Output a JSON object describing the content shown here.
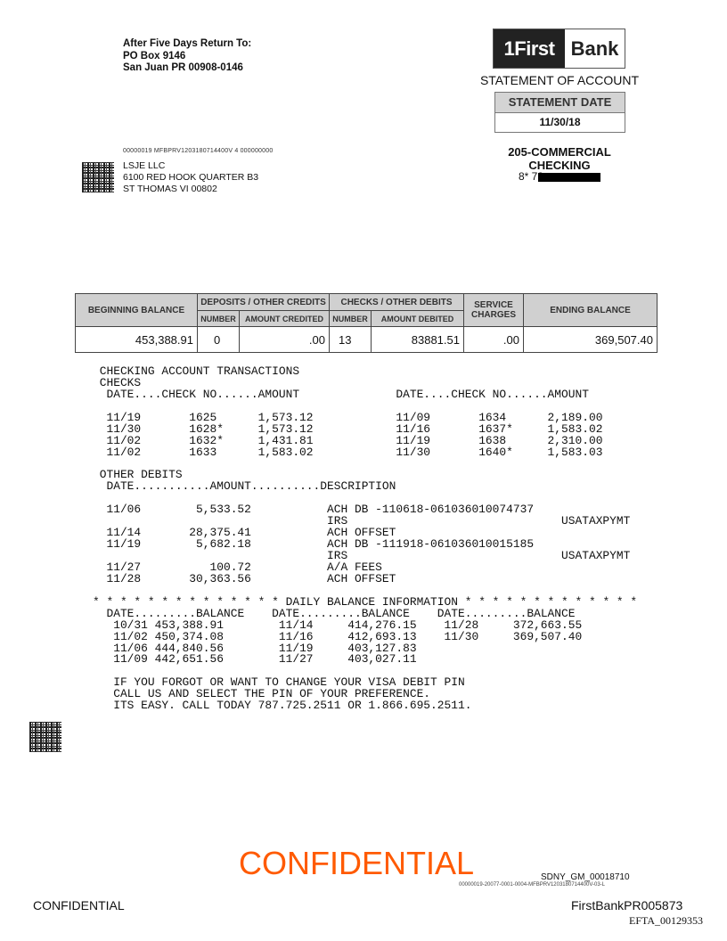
{
  "return_address": {
    "line1": "After Five Days Return To:",
    "line2": "PO Box 9146",
    "line3": "San Juan PR 00908-0146"
  },
  "logo": {
    "part1": "1First",
    "part2": "Bank"
  },
  "statement_title": "STATEMENT OF ACCOUNT",
  "statement_date": {
    "label": "STATEMENT DATE",
    "value": "11/30/18"
  },
  "account_type": "205-COMMERCIAL CHECKING",
  "account_number_visible": "8*  73",
  "mail_code": "00000019  MFBPRV1203180714400V  4  000000000",
  "customer": {
    "name": "LSJE LLC",
    "address1": "6100 RED HOOK QUARTER B3",
    "address2": "ST THOMAS VI  00802"
  },
  "summary": {
    "headers": {
      "beginning": "BEGINNING BALANCE",
      "deposits": "DEPOSITS / OTHER CREDITS",
      "dep_number": "NUMBER",
      "dep_amount": "AMOUNT  CREDITED",
      "checks": "CHECKS / OTHER DEBITS",
      "chk_number": "NUMBER",
      "chk_amount": "AMOUNT DEBITED",
      "service": "SERVICE CHARGES",
      "ending": "ENDING BALANCE"
    },
    "values": {
      "beginning": "453,388.91",
      "dep_number": "0",
      "dep_amount": ".00",
      "chk_number": "13",
      "chk_amount": "83881.51",
      "service": ".00",
      "ending": "369,507.40"
    }
  },
  "transactions": {
    "title": "CHECKING ACCOUNT TRANSACTIONS",
    "checks_label": "CHECKS",
    "checks_header": "DATE....CHECK NO......AMOUNT",
    "checks": [
      [
        "11/19",
        "1625",
        "1,573.12",
        "11/09",
        "1634",
        "2,189.00"
      ],
      [
        "11/30",
        "1628*",
        "1,573.12",
        "11/16",
        "1637*",
        "1,583.02"
      ],
      [
        "11/02",
        "1632*",
        "1,431.81",
        "11/19",
        "1638",
        "2,310.00"
      ],
      [
        "11/02",
        "1633",
        "1,583.02",
        "11/30",
        "1640*",
        "1,583.03"
      ]
    ],
    "other_debits_label": "OTHER DEBITS",
    "other_debits_header": "DATE...........AMOUNT..........DESCRIPTION",
    "other_debits": [
      [
        "11/06",
        "5,533.52",
        "ACH DB -110618-061036010074737",
        ""
      ],
      [
        "",
        "",
        "IRS",
        "USATAXPYMT"
      ],
      [
        "11/14",
        "28,375.41",
        "ACH OFFSET",
        ""
      ],
      [
        "11/19",
        "5,682.18",
        "ACH DB -111918-061036010015185",
        ""
      ],
      [
        "",
        "",
        "IRS",
        "USATAXPYMT"
      ],
      [
        "11/27",
        "100.72",
        "A/A FEES",
        ""
      ],
      [
        "11/28",
        "30,363.56",
        "ACH OFFSET",
        ""
      ]
    ],
    "daily_balance_title": "* * * * * * * * * * * * * * DAILY BALANCE INFORMATION * * * * * * * * * * * * *",
    "daily_balance_header": "DATE.........BALANCE",
    "daily_balances": [
      [
        "10/31",
        "453,388.91",
        "11/14",
        "414,276.15",
        "11/28",
        "372,663.55"
      ],
      [
        "11/02",
        "450,374.08",
        "11/16",
        "412,693.13",
        "11/30",
        "369,507.40"
      ],
      [
        "11/06",
        "444,840.56",
        "11/19",
        "403,127.83",
        "",
        ""
      ],
      [
        "11/09",
        "442,651.56",
        "11/27",
        "403,027.11",
        "",
        ""
      ]
    ],
    "message": [
      "IF YOU FORGOT OR WANT TO CHANGE YOUR VISA DEBIT PIN",
      "CALL US AND SELECT THE PIN OF YOUR PREFERENCE.",
      "ITS EASY. CALL TODAY 787.725.2511 OR 1.866.695.2511."
    ]
  },
  "footer": {
    "confidential_stamp": "CONFIDENTIAL",
    "sdny": "SDNY_GM_00018710",
    "doc_code": "00000019-20077-0001-0004-MFBPRV1203180714400V-03-L",
    "confidential": "CONFIDENTIAL",
    "bates": "FirstBankPR005873",
    "efta": "EFTA_00129353"
  },
  "colors": {
    "confidential_stamp": "#ff5a00",
    "header_fill": "#d0d0d0"
  }
}
